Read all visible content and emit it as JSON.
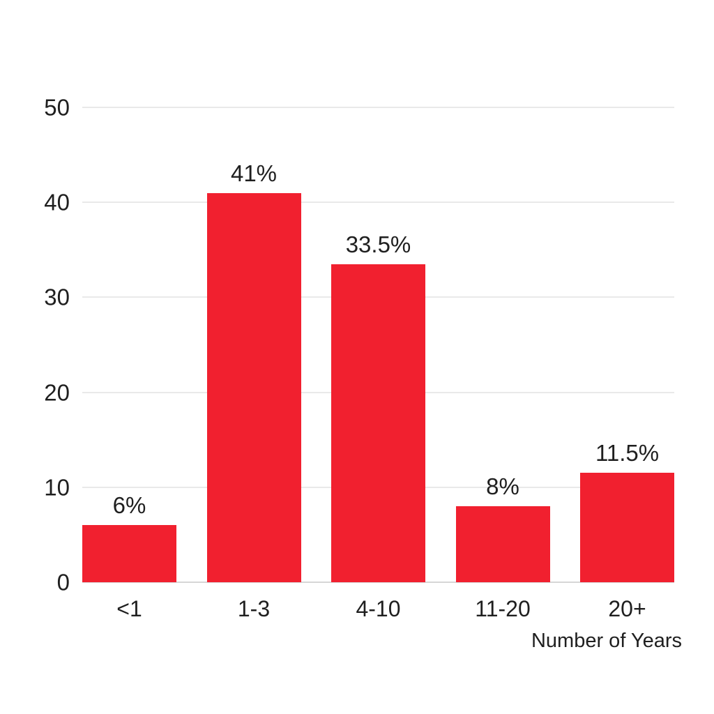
{
  "chart_data": {
    "type": "bar",
    "categories": [
      "<1",
      "1-3",
      "4-10",
      "11-20",
      "20+"
    ],
    "values": [
      6,
      41,
      33.5,
      8,
      11.5
    ],
    "value_labels": [
      "6%",
      "41%",
      "33.5%",
      "8%",
      "11.5%"
    ],
    "title": "",
    "xlabel": "Number of Years",
    "ylabel": "",
    "ylim": [
      0,
      50
    ],
    "yticks": [
      0,
      10,
      20,
      30,
      40,
      50
    ],
    "grid": true,
    "legend": false,
    "bar_color": "#f1202f",
    "grid_color": "#e9e9e9",
    "axis_line_color": "#d6d6d6",
    "text_color": "#1f1f1f",
    "background_color": "#ffffff"
  }
}
